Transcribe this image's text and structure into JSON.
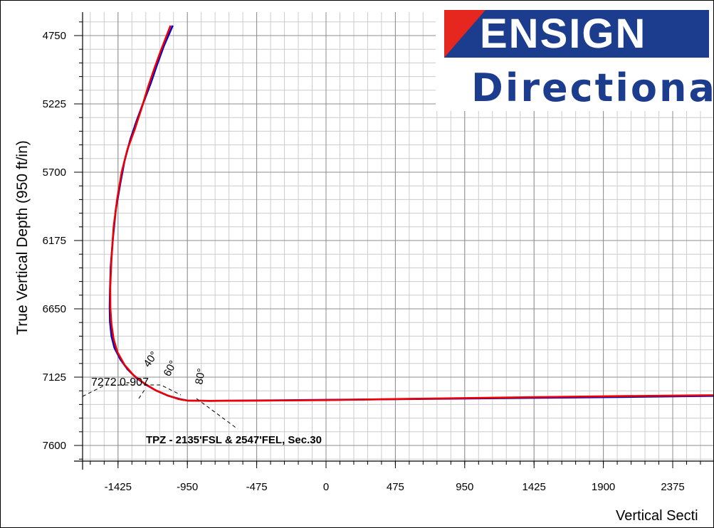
{
  "chart_data": {
    "type": "line",
    "title": "",
    "xlabel": "Vertical Secti",
    "ylabel": "True Vertical Depth (950 ft/in)",
    "xlim": [
      -1720,
      2700
    ],
    "ylim": [
      4680,
      7680
    ],
    "y_inverted": true,
    "grid": true,
    "x_ticks": [
      -1425,
      -950,
      -475,
      0,
      475,
      950,
      1425,
      1900,
      2375
    ],
    "x_tick_labels": [
      "-1425",
      "-950",
      "-475",
      "0",
      "475",
      "950",
      "1425",
      "1900",
      "2375"
    ],
    "y_ticks": [
      4750,
      5225,
      5700,
      6175,
      6650,
      7125,
      7600
    ],
    "y_tick_labels": [
      "4750",
      "5225",
      "5700",
      "6175",
      "6650",
      "7125",
      "7600"
    ],
    "series": [
      {
        "color": "#0000cc",
        "x": [
          -1050,
          -1110,
          -1160,
          -1200,
          -1260,
          -1300,
          -1340,
          -1380,
          -1410,
          -1440,
          -1460,
          -1475,
          -1480,
          -1482,
          -1480,
          -1470,
          -1450,
          -1410,
          -1360,
          -1300,
          -1230,
          -1160,
          -1080,
          -1000,
          -950,
          -800,
          -400,
          0,
          500,
          1000,
          1500,
          2000,
          2500,
          2700
        ],
        "y": [
          4680,
          4820,
          4960,
          5080,
          5240,
          5350,
          5470,
          5620,
          5780,
          5960,
          6160,
          6360,
          6520,
          6640,
          6740,
          6840,
          6920,
          7000,
          7070,
          7130,
          7180,
          7220,
          7255,
          7278,
          7288,
          7290,
          7287,
          7283,
          7278,
          7273,
          7268,
          7263,
          7257,
          7255
        ]
      },
      {
        "color": "#ee0000",
        "x": [
          -1065,
          -1130,
          -1180,
          -1220,
          -1265,
          -1310,
          -1360,
          -1400,
          -1430,
          -1455,
          -1470,
          -1478,
          -1477,
          -1470,
          -1455,
          -1430,
          -1380,
          -1320,
          -1250,
          -1170,
          -1090,
          -1010,
          -950,
          -800,
          -400,
          0,
          500,
          1000,
          1500,
          2000,
          2500,
          2700
        ],
        "y": [
          4680,
          4850,
          4990,
          5110,
          5260,
          5400,
          5540,
          5700,
          5880,
          6080,
          6300,
          6500,
          6650,
          6760,
          6860,
          6950,
          7040,
          7110,
          7165,
          7215,
          7250,
          7278,
          7288,
          7290,
          7288,
          7285,
          7277,
          7270,
          7263,
          7257,
          7252,
          7250
        ]
      }
    ],
    "annotations": [
      {
        "text": "7272.0-907"
      },
      {
        "text": "40°"
      },
      {
        "text": "60°"
      },
      {
        "text": "80°"
      },
      {
        "text": "TPZ - 2135'FSL & 2547'FEL, Sec.30"
      }
    ]
  },
  "logo": {
    "name": "ENSIGN",
    "sub": "Directional",
    "colors": {
      "blue": "#1c3d8e",
      "red": "#e5271f"
    }
  }
}
